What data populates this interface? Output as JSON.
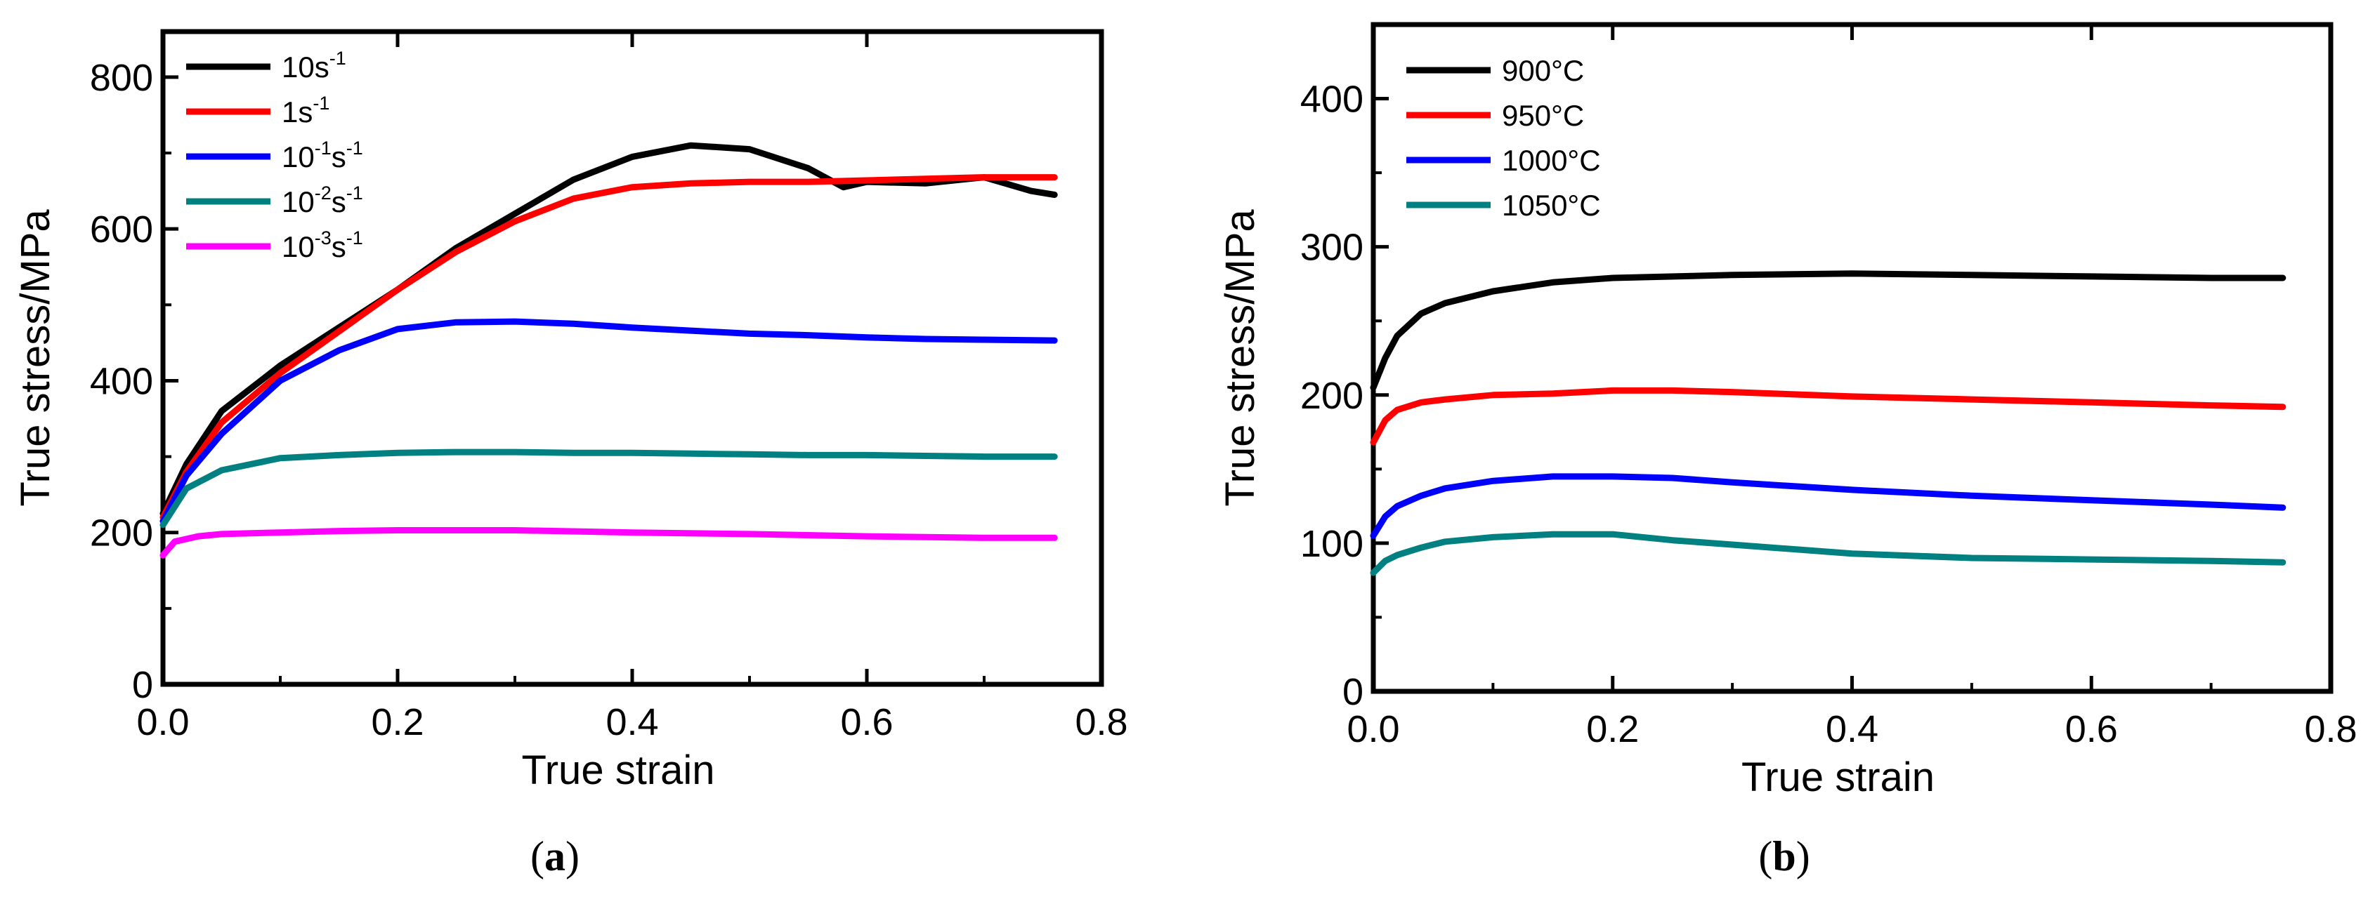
{
  "chart_data": [
    {
      "type": "line",
      "panel": "(a)",
      "panel_letter": "a",
      "xlabel": "True strain",
      "ylabel": "True stress/MPa",
      "xlim": [
        0.0,
        0.8
      ],
      "ylim": [
        0,
        860
      ],
      "xticks": [
        0.0,
        0.2,
        0.4,
        0.6,
        0.8
      ],
      "xtick_labels": [
        "0.0",
        "0.2",
        "0.4",
        "0.6",
        "0.8"
      ],
      "yticks": [
        0,
        200,
        400,
        600,
        800
      ],
      "ytick_labels": [
        "0",
        "200",
        "400",
        "600",
        "800"
      ],
      "legend_position": "top-left",
      "series": [
        {
          "name": "10s-1",
          "label_base": "10s",
          "label_sup": "-1",
          "label_tail": "",
          "color": "#000000",
          "x": [
            0.0,
            0.02,
            0.05,
            0.1,
            0.15,
            0.2,
            0.25,
            0.3,
            0.35,
            0.4,
            0.45,
            0.5,
            0.55,
            0.58,
            0.6,
            0.65,
            0.7,
            0.74,
            0.76
          ],
          "y": [
            225,
            290,
            360,
            420,
            470,
            520,
            575,
            620,
            665,
            695,
            710,
            705,
            680,
            655,
            662,
            660,
            668,
            650,
            645
          ]
        },
        {
          "name": "1s-1",
          "label_base": "1s",
          "label_sup": "-1",
          "label_tail": "",
          "color": "#ff0000",
          "x": [
            0.0,
            0.02,
            0.05,
            0.1,
            0.15,
            0.2,
            0.25,
            0.3,
            0.35,
            0.4,
            0.45,
            0.5,
            0.55,
            0.6,
            0.65,
            0.7,
            0.76
          ],
          "y": [
            220,
            280,
            345,
            410,
            465,
            520,
            570,
            610,
            640,
            655,
            660,
            662,
            662,
            664,
            666,
            668,
            668
          ]
        },
        {
          "name": "10-1s-1",
          "label_base": "10",
          "label_sup": "-1",
          "label_tail": "s",
          "label_sup2": "-1",
          "color": "#0000ff",
          "x": [
            0.0,
            0.02,
            0.05,
            0.1,
            0.15,
            0.2,
            0.25,
            0.3,
            0.35,
            0.4,
            0.45,
            0.5,
            0.55,
            0.6,
            0.65,
            0.7,
            0.76
          ],
          "y": [
            215,
            275,
            330,
            400,
            440,
            468,
            477,
            478,
            475,
            470,
            466,
            462,
            460,
            457,
            455,
            454,
            453
          ]
        },
        {
          "name": "10-2s-1",
          "label_base": "10",
          "label_sup": "-2",
          "label_tail": "s",
          "label_sup2": "-1",
          "color": "#008080",
          "x": [
            0.0,
            0.02,
            0.05,
            0.1,
            0.15,
            0.2,
            0.25,
            0.3,
            0.35,
            0.4,
            0.45,
            0.5,
            0.55,
            0.6,
            0.65,
            0.7,
            0.76
          ],
          "y": [
            210,
            258,
            282,
            298,
            302,
            305,
            306,
            306,
            305,
            305,
            304,
            303,
            302,
            302,
            301,
            300,
            300
          ]
        },
        {
          "name": "10-3s-1",
          "label_base": "10",
          "label_sup": "-3",
          "label_tail": "s",
          "label_sup2": "-1",
          "color": "#ff00ff",
          "x": [
            0.0,
            0.01,
            0.03,
            0.05,
            0.1,
            0.15,
            0.2,
            0.3,
            0.4,
            0.5,
            0.6,
            0.7,
            0.76
          ],
          "y": [
            170,
            188,
            195,
            198,
            200,
            202,
            203,
            203,
            200,
            198,
            195,
            193,
            193
          ]
        }
      ]
    },
    {
      "type": "line",
      "panel": "(b)",
      "panel_letter": "b",
      "xlabel": "True strain",
      "ylabel": "True stress/MPa",
      "xlim": [
        0.0,
        0.8
      ],
      "ylim": [
        0,
        450
      ],
      "xticks": [
        0.0,
        0.2,
        0.4,
        0.6,
        0.8
      ],
      "xtick_labels": [
        "0.0",
        "0.2",
        "0.4",
        "0.6",
        "0.8"
      ],
      "yticks": [
        0,
        100,
        200,
        300,
        400
      ],
      "ytick_labels": [
        "0",
        "100",
        "200",
        "300",
        "400"
      ],
      "legend_position": "top-left",
      "series": [
        {
          "name": "900°C",
          "label_base": "900°C",
          "color": "#000000",
          "x": [
            0.0,
            0.01,
            0.02,
            0.04,
            0.06,
            0.1,
            0.15,
            0.2,
            0.3,
            0.4,
            0.5,
            0.6,
            0.7,
            0.76
          ],
          "y": [
            205,
            225,
            240,
            255,
            262,
            270,
            276,
            279,
            281,
            282,
            281,
            280,
            279,
            279
          ]
        },
        {
          "name": "950°C",
          "label_base": "950°C",
          "color": "#ff0000",
          "x": [
            0.0,
            0.01,
            0.02,
            0.04,
            0.06,
            0.1,
            0.15,
            0.2,
            0.25,
            0.3,
            0.4,
            0.5,
            0.6,
            0.7,
            0.76
          ],
          "y": [
            168,
            183,
            190,
            195,
            197,
            200,
            201,
            203,
            203,
            202,
            199,
            197,
            195,
            193,
            192
          ]
        },
        {
          "name": "1000°C",
          "label_base": "1000°C",
          "color": "#0000ff",
          "x": [
            0.0,
            0.01,
            0.02,
            0.04,
            0.06,
            0.1,
            0.15,
            0.2,
            0.25,
            0.3,
            0.4,
            0.5,
            0.6,
            0.7,
            0.76
          ],
          "y": [
            105,
            118,
            125,
            132,
            137,
            142,
            145,
            145,
            144,
            141,
            136,
            132,
            129,
            126,
            124
          ]
        },
        {
          "name": "1050°C",
          "label_base": "1050°C",
          "color": "#008080",
          "x": [
            0.0,
            0.01,
            0.02,
            0.04,
            0.06,
            0.1,
            0.15,
            0.2,
            0.25,
            0.3,
            0.4,
            0.5,
            0.6,
            0.7,
            0.76
          ],
          "y": [
            80,
            88,
            92,
            97,
            101,
            104,
            106,
            106,
            102,
            99,
            93,
            90,
            89,
            88,
            87
          ]
        }
      ]
    }
  ]
}
